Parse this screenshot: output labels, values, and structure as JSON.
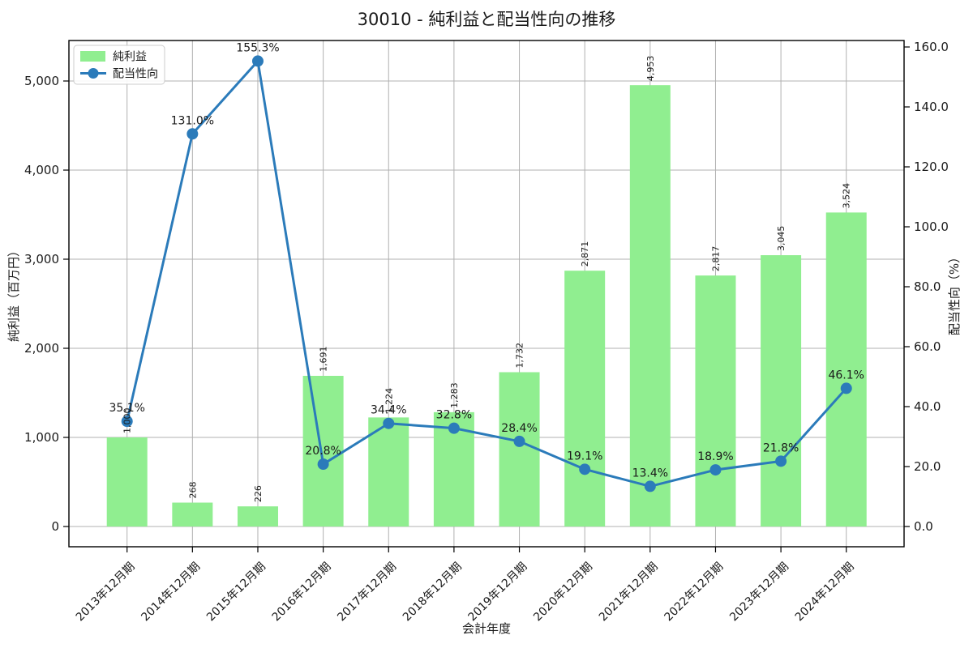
{
  "chart_data": {
    "type": "combo",
    "title": "30010 - 純利益と配当性向の推移",
    "xlabel": "会計年度",
    "ylabel_left": "純利益（百万円）",
    "ylabel_right": "配当性向（%）",
    "categories": [
      "2013年12月期",
      "2014年12月期",
      "2015年12月期",
      "2016年12月期",
      "2017年12月期",
      "2018年12月期",
      "2019年12月期",
      "2020年12月期",
      "2021年12月期",
      "2022年12月期",
      "2023年12月期",
      "2024年12月期"
    ],
    "series": [
      {
        "name": "純利益",
        "type": "bar",
        "axis": "left",
        "color": "#90ee90",
        "values": [
          1000,
          268,
          226,
          1691,
          1224,
          1283,
          1732,
          2871,
          4953,
          2817,
          3045,
          3524
        ],
        "labels": [
          "1,000",
          "268",
          "226",
          "1,691",
          "1,224",
          "1,283",
          "1,732",
          "2,871",
          "4,953",
          "2,817",
          "3,045",
          "3,524"
        ]
      },
      {
        "name": "配当性向",
        "type": "line",
        "axis": "right",
        "color": "#2b7bba",
        "values": [
          35.1,
          131.0,
          155.3,
          20.8,
          34.4,
          32.8,
          28.4,
          19.1,
          13.4,
          18.9,
          21.8,
          46.1
        ],
        "labels": [
          "35.1%",
          "131.0%",
          "155.3%",
          "20.8%",
          "34.4%",
          "32.8%",
          "28.4%",
          "19.1%",
          "13.4%",
          "18.9%",
          "21.8%",
          "46.1%"
        ]
      }
    ],
    "axes": {
      "left_tick_values": [
        0,
        1000,
        2000,
        3000,
        4000,
        5000
      ],
      "left_tick_labels": [
        "0",
        "1,000",
        "2,000",
        "3,000",
        "4,000",
        "5,000"
      ],
      "right_tick_values": [
        0,
        20,
        40,
        60,
        80,
        100,
        120,
        140,
        160
      ],
      "right_tick_labels": [
        "0.0",
        "20.0",
        "40.0",
        "60.0",
        "80.0",
        "100.0",
        "120.0",
        "140.0",
        "160.0"
      ]
    },
    "ylim_left": [
      -230,
      5455
    ],
    "ylim_right": [
      -6.8,
      162.2
    ],
    "grid": true,
    "legend_position": "upper-left",
    "colors": {
      "bar": "#90ee90",
      "line": "#2b7bba",
      "grid": "#b0b0b0",
      "text": "#1a1a1a"
    }
  }
}
